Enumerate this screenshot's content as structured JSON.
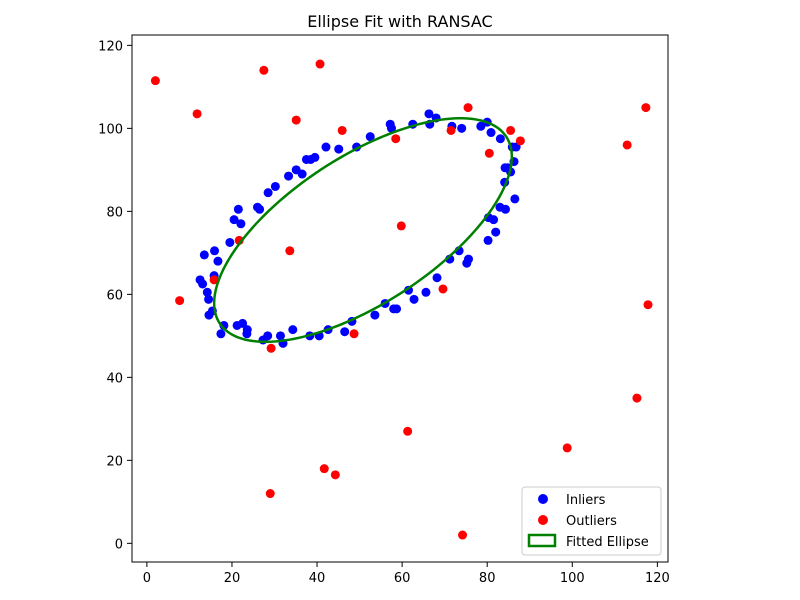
{
  "chart_data": {
    "type": "scatter",
    "title": "Ellipse Fit with RANSAC",
    "xlabel": "",
    "ylabel": "",
    "xlim": [
      -3.5,
      122.5
    ],
    "ylim": [
      -4.5,
      122.5
    ],
    "xticks": [
      0,
      20,
      40,
      60,
      80,
      100,
      120
    ],
    "yticks": [
      0,
      20,
      40,
      60,
      80,
      100,
      120
    ],
    "grid": false,
    "legend_position": "lower-right",
    "series": [
      {
        "name": "Inliers",
        "kind": "scatter",
        "color": "#0000ff",
        "points": [
          [
            12.5,
            63.5
          ],
          [
            13.1,
            62.5
          ],
          [
            13.5,
            69.5
          ],
          [
            14.2,
            60.5
          ],
          [
            14.5,
            58.8
          ],
          [
            14.6,
            55
          ],
          [
            15.4,
            56
          ],
          [
            15.8,
            64.5
          ],
          [
            15.9,
            70.5
          ],
          [
            16.7,
            68
          ],
          [
            17.4,
            50.5
          ],
          [
            18.1,
            52.5
          ],
          [
            19.5,
            72.5
          ],
          [
            20.5,
            78
          ],
          [
            21.2,
            52.5
          ],
          [
            21.5,
            80.5
          ],
          [
            22.1,
            77
          ],
          [
            22.5,
            53
          ],
          [
            23.6,
            51.5
          ],
          [
            23.5,
            50.5
          ],
          [
            26,
            81
          ],
          [
            26.5,
            80.5
          ],
          [
            27.3,
            49
          ],
          [
            28.4,
            50
          ],
          [
            28.5,
            84.5
          ],
          [
            30.2,
            86
          ],
          [
            31.4,
            50
          ],
          [
            32,
            48.2
          ],
          [
            33.3,
            88.5
          ],
          [
            34.3,
            51.5
          ],
          [
            35.1,
            90
          ],
          [
            36.5,
            89
          ],
          [
            37.5,
            92.5
          ],
          [
            38.3,
            50
          ],
          [
            38.5,
            92.5
          ],
          [
            39.5,
            93
          ],
          [
            40.5,
            50
          ],
          [
            42.1,
            95.5
          ],
          [
            42.6,
            51.5
          ],
          [
            45.1,
            95
          ],
          [
            46.5,
            51
          ],
          [
            48.2,
            53.5
          ],
          [
            49.3,
            95.5
          ],
          [
            52.5,
            98
          ],
          [
            53.6,
            55
          ],
          [
            56,
            57.8
          ],
          [
            57.2,
            101
          ],
          [
            57.5,
            100
          ],
          [
            58,
            56.5
          ],
          [
            58.7,
            56.5
          ],
          [
            61.5,
            61
          ],
          [
            62.5,
            101
          ],
          [
            62.8,
            58.8
          ],
          [
            65.6,
            60.5
          ],
          [
            66.3,
            103.5
          ],
          [
            66.5,
            101
          ],
          [
            68,
            102.5
          ],
          [
            68.2,
            64
          ],
          [
            71.2,
            68.5
          ],
          [
            71.7,
            100.5
          ],
          [
            73.4,
            70.5
          ],
          [
            74,
            100
          ],
          [
            75.2,
            67.5
          ],
          [
            75.6,
            68.5
          ],
          [
            78.5,
            100.5
          ],
          [
            80,
            101.5
          ],
          [
            80.3,
            78.5
          ],
          [
            80.2,
            73
          ],
          [
            80.9,
            99
          ],
          [
            81.5,
            78
          ],
          [
            82,
            75
          ],
          [
            83,
            81
          ],
          [
            83.1,
            97.5
          ],
          [
            84.1,
            87
          ],
          [
            84.2,
            90.5
          ],
          [
            84.3,
            80.5
          ],
          [
            84.8,
            90.5
          ],
          [
            85.5,
            89.5
          ],
          [
            85.9,
            95.5
          ],
          [
            86.3,
            92
          ],
          [
            86.5,
            83
          ],
          [
            86.8,
            95.5
          ]
        ]
      },
      {
        "name": "Outliers",
        "kind": "scatter",
        "color": "#ff0000",
        "points": [
          [
            2,
            111.5
          ],
          [
            7.7,
            58.5
          ],
          [
            11.8,
            103.5
          ],
          [
            15.8,
            63.5
          ],
          [
            21.7,
            73
          ],
          [
            27.5,
            114
          ],
          [
            29,
            12
          ],
          [
            29.2,
            47
          ],
          [
            33.6,
            70.5
          ],
          [
            35.1,
            102
          ],
          [
            40.7,
            115.5
          ],
          [
            41.7,
            18
          ],
          [
            44.3,
            16.5
          ],
          [
            45.9,
            99.5
          ],
          [
            48.7,
            50.5
          ],
          [
            58.5,
            97.5
          ],
          [
            59.8,
            76.5
          ],
          [
            61.3,
            27
          ],
          [
            69.6,
            61.3
          ],
          [
            71.5,
            99.5
          ],
          [
            74.2,
            2
          ],
          [
            75.5,
            105
          ],
          [
            80.5,
            94
          ],
          [
            85.5,
            99.5
          ],
          [
            87.8,
            97
          ],
          [
            98.8,
            23
          ],
          [
            112.9,
            96
          ],
          [
            115.2,
            35
          ],
          [
            117.3,
            105
          ],
          [
            117.8,
            57.5
          ]
        ]
      },
      {
        "name": "Fitted Ellipse",
        "kind": "ellipse",
        "color": "#008000",
        "center": [
          50.8,
          75.5
        ],
        "semi_axes": [
          40.5,
          17.6
        ],
        "angle_deg": 34
      }
    ]
  }
}
